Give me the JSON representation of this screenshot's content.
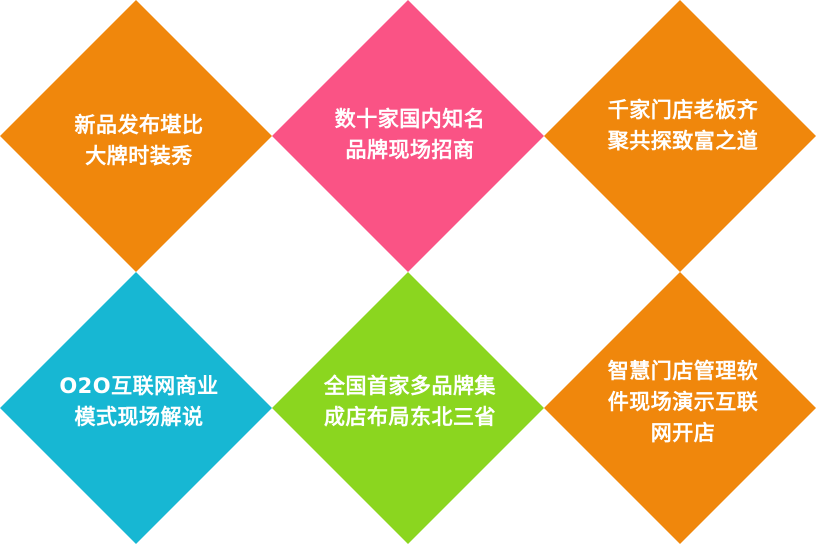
{
  "tiles": [
    {
      "color": "#F0870C",
      "lines": [
        "新品发布堪比",
        "大牌时装秀"
      ]
    },
    {
      "color": "#FA5385",
      "lines": [
        "数十家国内知名",
        "品牌现场招商"
      ]
    },
    {
      "color": "#F0870C",
      "lines": [
        "千家门店老板齐",
        "聚共探致富之道"
      ]
    },
    {
      "color": "#17B7D3",
      "lines": [
        "O2O互联网商业",
        "模式现场解说"
      ]
    },
    {
      "color": "#8BD61F",
      "lines": [
        "全国首家多品牌集",
        "成店布局东北三省"
      ]
    },
    {
      "color": "#F0870C",
      "lines": [
        "智慧门店管理软",
        "件现场演示互联",
        "网开店"
      ]
    }
  ]
}
